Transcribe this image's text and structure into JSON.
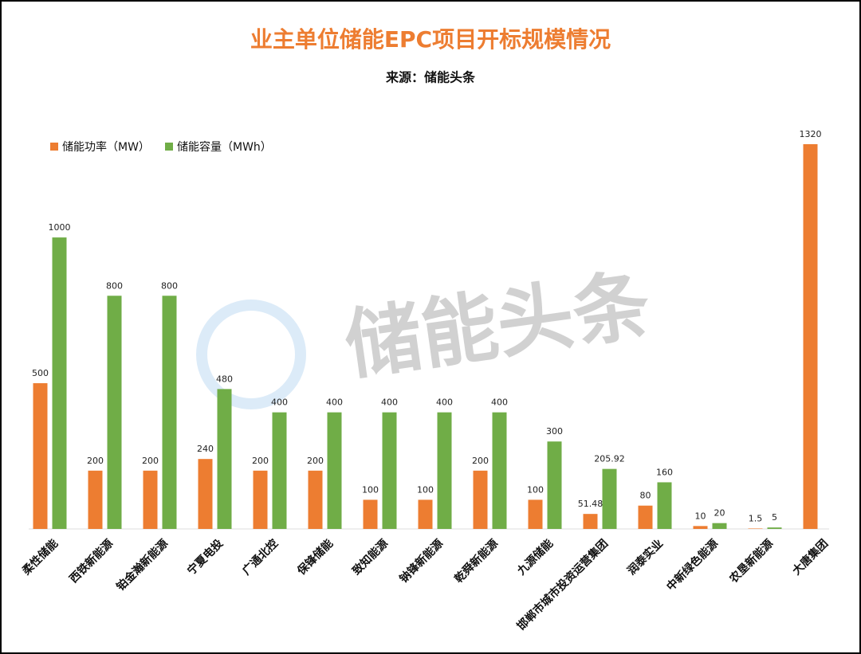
{
  "chart_data": {
    "type": "bar",
    "title": "业主单位储能EPC项目开标规模情况",
    "subtitle": "来源：储能头条",
    "watermark": "储能头条",
    "categories": [
      "柔性储能",
      "西铁新能源",
      "铂金瀚新能源",
      "宁夏电投",
      "广通北控",
      "保锋储能",
      "致知能源",
      "钠锋新能源",
      "乾舜新能源",
      "九源储能",
      "邯郸市城市投资运营集团",
      "润泰实业",
      "中新绿色能源",
      "农垦新能源",
      "大唐集团"
    ],
    "series": [
      {
        "name": "储能功率（MW）",
        "color": "#ED7D31",
        "values": [
          500,
          200,
          200,
          240,
          200,
          200,
          100,
          100,
          200,
          100,
          51.48,
          80,
          10,
          1.5,
          1320
        ]
      },
      {
        "name": "储能容量（MWh）",
        "color": "#70AD47",
        "values": [
          1000,
          800,
          800,
          480,
          400,
          400,
          400,
          400,
          400,
          300,
          205.92,
          160,
          20,
          5,
          null
        ]
      }
    ],
    "legend": "top-left"
  }
}
